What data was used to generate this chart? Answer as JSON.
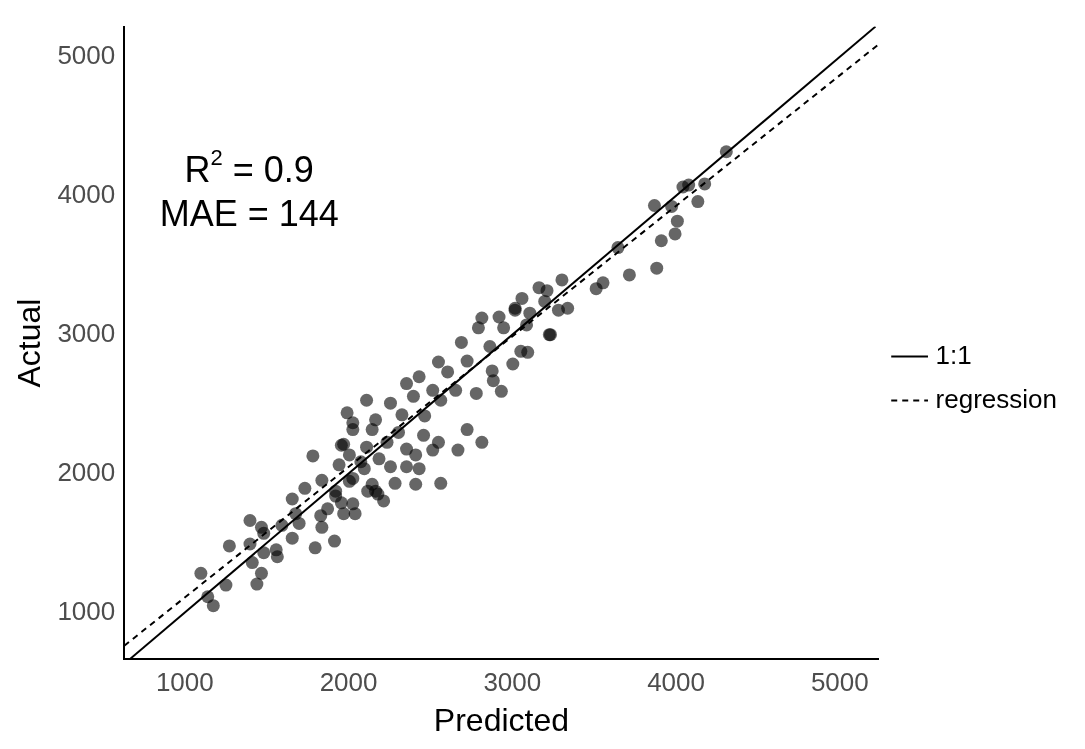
{
  "chart_data": {
    "type": "scatter",
    "xlabel": "Predicted",
    "ylabel": "Actual",
    "xlim": [
      630,
      5237
    ],
    "ylim": [
      662,
      5218
    ],
    "xticks": [
      1000,
      2000,
      3000,
      4000,
      5000
    ],
    "yticks": [
      1000,
      2000,
      3000,
      4000,
      5000
    ],
    "grid": false,
    "legend": "right",
    "annotations": [
      "R$^{2}$ = 0.9",
      "MAE = 144"
    ],
    "series": [
      {
        "color": "#000000",
        "marker": "circle",
        "x": [
          4307,
          4077,
          4042,
          4175,
          4133,
          3868,
          3973,
          4008,
          3994,
          3910,
          3882,
          3645,
          3715,
          3554,
          3512,
          3303,
          3163,
          3212,
          3059,
          3198,
          3338,
          3282,
          3233,
          3017,
          3107,
          3087,
          3094,
          3003,
          2814,
          2919,
          3017,
          3226,
          2793,
          2947,
          2689,
          2863,
          3052,
          2549,
          2724,
          2877,
          2431,
          2605,
          2884,
          2933,
          2354,
          2514,
          2654,
          2780,
          2110,
          2256,
          2396,
          2563,
          1991,
          2165,
          2326,
          2465,
          2026,
          2144,
          2305,
          2458,
          2724,
          2814,
          1956,
          2110,
          2235,
          2354,
          2549,
          2668,
          2005,
          2186,
          2410,
          2514,
          1942,
          2096,
          2256,
          2354,
          2431,
          2026,
          2144,
          2284,
          2410,
          2563,
          1921,
          2117,
          2214,
          2026,
          2179,
          1956,
          1782,
          1837,
          1733,
          1656,
          1921,
          1872,
          1970,
          2040,
          1677,
          1830,
          1698,
          1593,
          1837,
          1398,
          1468,
          1482,
          1656,
          1796,
          1914,
          1272,
          1398,
          1558,
          1482,
          1565,
          1412,
          1468,
          1440,
          1251,
          1098,
          1140,
          1174,
          2026,
          1970,
          2005,
          2165,
          2075
        ],
        "values": [
          4317,
          4077,
          4063,
          4085,
          3958,
          3930,
          3923,
          3817,
          3725,
          3676,
          3479,
          3627,
          3430,
          3373,
          3331,
          3394,
          3338,
          3317,
          3261,
          3239,
          3190,
          3176,
          3000,
          3190,
          3155,
          3070,
          2873,
          2789,
          3120,
          3127,
          3176,
          3000,
          3049,
          3049,
          2944,
          2915,
          2880,
          2803,
          2810,
          2739,
          2697,
          2732,
          2669,
          2592,
          2648,
          2599,
          2599,
          2577,
          2528,
          2507,
          2556,
          2528,
          2437,
          2387,
          2423,
          2415,
          2317,
          2317,
          2296,
          2275,
          2317,
          2225,
          2204,
          2190,
          2225,
          2176,
          2225,
          2169,
          2134,
          2106,
          2134,
          2169,
          2063,
          2035,
          2049,
          2049,
          2035,
          1965,
          1923,
          1930,
          1923,
          1930,
          1873,
          1873,
          1803,
          1782,
          1852,
          1789,
          2127,
          1951,
          1894,
          1817,
          1838,
          1746,
          1711,
          1711,
          1711,
          1697,
          1641,
          1627,
          1613,
          1662,
          1613,
          1570,
          1535,
          1465,
          1514,
          1479,
          1493,
          1451,
          1430,
          1401,
          1359,
          1282,
          1204,
          1197,
          1282,
          1113,
          1049,
          2366,
          2211,
          1944,
          1873,
          2085
        ]
      },
      {
        "type": "line",
        "name": "1:1",
        "color": "#000000",
        "marker": "none",
        "line_style": "solid",
        "x": [
          662,
          5218
        ],
        "values": [
          662,
          5218
        ]
      },
      {
        "type": "line",
        "name": "regression",
        "color": "#000000",
        "marker": "none",
        "line_style": "dashed",
        "x": [
          630,
          5237
        ],
        "values": [
          760,
          5090
        ]
      }
    ]
  }
}
